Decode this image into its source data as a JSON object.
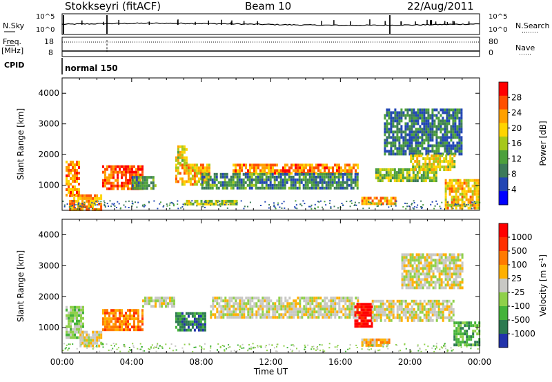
{
  "header": {
    "radar_title": "Stokkseyri (fitACF)",
    "beam_label": "Beam 10",
    "date_label": "22/Aug/2011"
  },
  "top_panels": {
    "nsky_label": "N.Sky",
    "nsearch_label": "N.Search",
    "freq_label": "Freq.",
    "freq_unit": "[MHz]",
    "nave_label": "Nave",
    "cpid_label": "CPID",
    "cpid_value": "normal 150",
    "noise_ticks_left": [
      "10^5",
      "10^0"
    ],
    "noise_ticks_right": [
      "10^5",
      "10^0"
    ],
    "freq_ticks": [
      "18",
      "8"
    ],
    "nave_ticks": [
      "80",
      "0"
    ]
  },
  "chart_data": [
    {
      "type": "heatmap",
      "name": "power",
      "ylabel": "Slant Range [km]",
      "colorbar_label": "Power [dB]",
      "x_ticks": [
        "00:00",
        "04:00",
        "08:00",
        "12:00",
        "16:00",
        "20:00",
        "00:00"
      ],
      "xlim_hours": [
        0,
        24
      ],
      "y_ticks": [
        1000,
        2000,
        3000,
        4000
      ],
      "ylim": [
        180,
        4500
      ],
      "colorbar_ticks": [
        4,
        8,
        12,
        16,
        20,
        24,
        28
      ],
      "colorbar_range": [
        0,
        32
      ],
      "colors": [
        "#0000ff",
        "#2246b4",
        "#3c7a5a",
        "#4ca03c",
        "#a6c81a",
        "#ffd400",
        "#ffa000",
        "#ff5000",
        "#ff0000"
      ],
      "regions": [
        {
          "t": [
            0.2,
            1.0
          ],
          "r": [
            700,
            1800
          ],
          "level": 25
        },
        {
          "t": [
            0.4,
            2.3
          ],
          "r": [
            200,
            700
          ],
          "level": 24
        },
        {
          "t": [
            2.3,
            4.6
          ],
          "r": [
            850,
            1650
          ],
          "level": 28
        },
        {
          "t": [
            4.0,
            5.4
          ],
          "r": [
            900,
            1300
          ],
          "level": 10
        },
        {
          "t": [
            6.5,
            8.5
          ],
          "r": [
            1000,
            1700
          ],
          "level": 22
        },
        {
          "t": [
            6.5,
            7.2
          ],
          "r": [
            1700,
            2300
          ],
          "level": 18
        },
        {
          "t": [
            7.0,
            10.0
          ],
          "r": [
            420,
            520
          ],
          "level": 17
        },
        {
          "t": [
            9.8,
            17.0
          ],
          "r": [
            1400,
            1700
          ],
          "level": 25
        },
        {
          "t": [
            8.0,
            17.0
          ],
          "r": [
            900,
            1400
          ],
          "level": 9
        },
        {
          "t": [
            17.2,
            19.2
          ],
          "r": [
            400,
            620
          ],
          "level": 23
        },
        {
          "t": [
            18.0,
            21.5
          ],
          "r": [
            1150,
            1550
          ],
          "level": 15
        },
        {
          "t": [
            18.5,
            23.0
          ],
          "r": [
            2000,
            3500
          ],
          "level": 8
        },
        {
          "t": [
            20.0,
            22.5
          ],
          "r": [
            1500,
            2000
          ],
          "level": 19
        },
        {
          "t": [
            22.0,
            24.0
          ],
          "r": [
            250,
            1200
          ],
          "level": 21
        }
      ]
    },
    {
      "type": "heatmap",
      "name": "velocity",
      "ylabel": "Slant Range [km]",
      "xlabel": "Time UT",
      "colorbar_label": "Velocity [m s",
      "colorbar_label_exp": "-1",
      "colorbar_label_end": "]",
      "x_ticks": [
        "00:00",
        "04:00",
        "08:00",
        "12:00",
        "16:00",
        "20:00",
        "00:00"
      ],
      "xlim_hours": [
        0,
        24
      ],
      "y_ticks": [
        1000,
        2000,
        3000,
        4000
      ],
      "ylim": [
        180,
        4500
      ],
      "colorbar_ticks": [
        "1000",
        "500",
        "100",
        "25",
        "-25",
        "-100",
        "-500",
        "-1000"
      ],
      "colors": [
        "#2233aa",
        "#2c7a50",
        "#44b33a",
        "#8fd04a",
        "#c8c8c4",
        "#ffb000",
        "#ff7a00",
        "#ff3000",
        "#ff0000"
      ],
      "regions": [
        {
          "t": [
            0.2,
            1.2
          ],
          "r": [
            700,
            1700
          ],
          "level": 3
        },
        {
          "t": [
            1.0,
            2.3
          ],
          "r": [
            400,
            900
          ],
          "level": 4
        },
        {
          "t": [
            2.3,
            4.6
          ],
          "r": [
            900,
            1600
          ],
          "level": 6
        },
        {
          "t": [
            4.6,
            6.5
          ],
          "r": [
            1700,
            2000
          ],
          "level": 4
        },
        {
          "t": [
            6.5,
            8.2
          ],
          "r": [
            900,
            1500
          ],
          "level": 1
        },
        {
          "t": [
            8.5,
            17.0
          ],
          "r": [
            1300,
            2000
          ],
          "level": 4
        },
        {
          "t": [
            16.8,
            17.8
          ],
          "r": [
            1000,
            1800
          ],
          "level": 8
        },
        {
          "t": [
            17.2,
            18.8
          ],
          "r": [
            400,
            650
          ],
          "level": 5
        },
        {
          "t": [
            17.8,
            22.5
          ],
          "r": [
            1200,
            1900
          ],
          "level": 4
        },
        {
          "t": [
            19.5,
            23.0
          ],
          "r": [
            2300,
            3400
          ],
          "level": 4
        },
        {
          "t": [
            22.5,
            24.0
          ],
          "r": [
            400,
            1200
          ],
          "level": 2
        }
      ]
    }
  ]
}
